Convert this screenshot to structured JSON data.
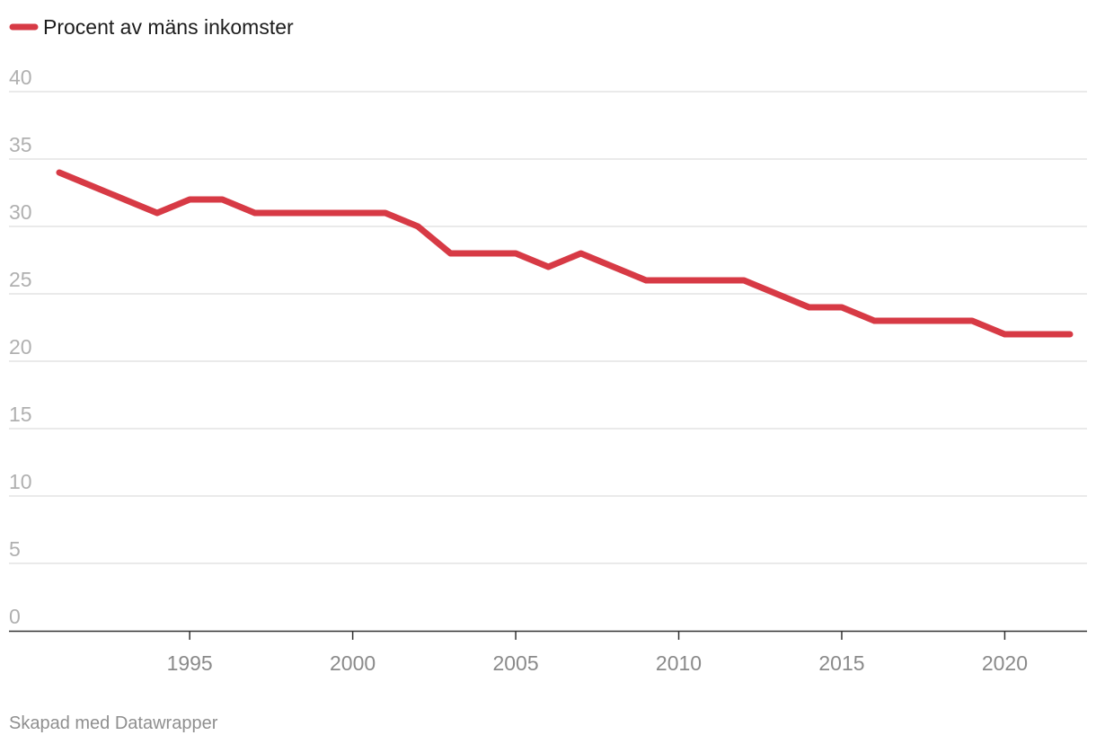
{
  "chart_data": {
    "type": "line",
    "legend": "Procent av mäns inkomster",
    "x": [
      1991,
      1992,
      1993,
      1994,
      1995,
      1996,
      1997,
      1998,
      1999,
      2000,
      2001,
      2002,
      2003,
      2004,
      2005,
      2006,
      2007,
      2008,
      2009,
      2010,
      2011,
      2012,
      2013,
      2014,
      2015,
      2016,
      2017,
      2018,
      2019,
      2020,
      2021,
      2022
    ],
    "series": [
      {
        "name": "Procent av mäns inkomster",
        "color": "#d73a45",
        "values": [
          34,
          33,
          32,
          31,
          32,
          32,
          31,
          31,
          31,
          31,
          31,
          30,
          28,
          28,
          28,
          27,
          28,
          27,
          26,
          26,
          26,
          26,
          25,
          24,
          24,
          23,
          23,
          23,
          23,
          22,
          22,
          22
        ]
      }
    ],
    "ylim": [
      0,
      40
    ],
    "yticks": [
      "0",
      "5",
      "10",
      "15",
      "20",
      "25",
      "30",
      "35",
      "40"
    ],
    "xticks": [
      "1995",
      "2000",
      "2005",
      "2010",
      "2015",
      "2020"
    ],
    "xlabel": "",
    "ylabel": "",
    "grid": true
  },
  "footer": "Skapad med Datawrapper"
}
